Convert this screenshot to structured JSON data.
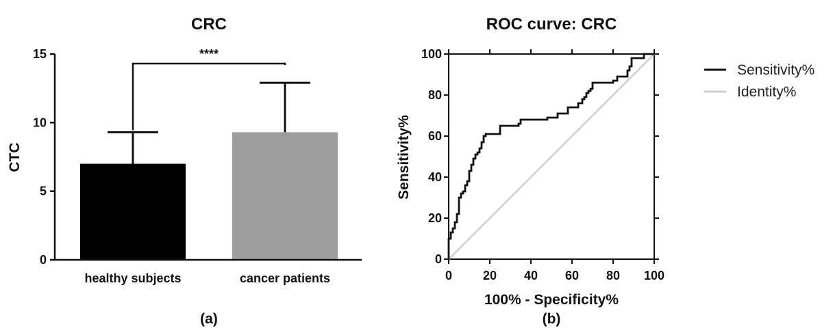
{
  "chart_data": [
    {
      "type": "bar",
      "panel_label": "(a)",
      "title": "CRC",
      "xlabel": "",
      "ylabel": "CTC",
      "ylim": [
        0,
        15
      ],
      "yticks": [
        "0",
        "5",
        "10",
        "15"
      ],
      "categories": [
        "healthy subjects",
        "cancer patients"
      ],
      "values": [
        7.0,
        9.3
      ],
      "error_upper": [
        9.3,
        12.9
      ],
      "colors": [
        "#000000",
        "#9e9e9e"
      ],
      "significance": {
        "label": "****",
        "between": [
          "healthy subjects",
          "cancer patients"
        ],
        "y": 14.3
      }
    },
    {
      "type": "line",
      "panel_label": "(b)",
      "title": "ROC curve: CRC",
      "xlabel": "100% - Specificity%",
      "ylabel": "Sensitivity%",
      "xlim": [
        0,
        100
      ],
      "ylim": [
        0,
        100
      ],
      "xticks": [
        "0",
        "20",
        "40",
        "60",
        "80",
        "100"
      ],
      "yticks": [
        "0",
        "20",
        "40",
        "60",
        "80",
        "100"
      ],
      "legend_position": "right",
      "series": [
        {
          "name": "Sensitivity%",
          "color": "#111111",
          "x": [
            0,
            0,
            1,
            1,
            2,
            2,
            3,
            3,
            4,
            4,
            5,
            5,
            6,
            6,
            7,
            7,
            8,
            8,
            9,
            9,
            10,
            10,
            11,
            11,
            12,
            12,
            13,
            13,
            14,
            14,
            15,
            15,
            16,
            16,
            17,
            17,
            18,
            18,
            25,
            25,
            34,
            34,
            35,
            35,
            48,
            48,
            53,
            53,
            58,
            58,
            63,
            63,
            65,
            65,
            66,
            66,
            67,
            67,
            68,
            68,
            69,
            69,
            70,
            70,
            80,
            80,
            82,
            82,
            87,
            87,
            88,
            88,
            89,
            89,
            95,
            95,
            100
          ],
          "y": [
            0,
            10,
            10,
            13,
            13,
            15,
            15,
            18,
            18,
            22,
            22,
            30,
            30,
            32,
            32,
            33,
            33,
            36,
            36,
            38,
            38,
            43,
            43,
            46,
            46,
            49,
            49,
            51,
            51,
            52,
            52,
            54,
            54,
            57,
            57,
            60,
            60,
            61,
            61,
            65,
            65,
            66,
            66,
            68,
            68,
            69,
            69,
            71,
            71,
            74,
            74,
            76,
            76,
            78,
            78,
            79,
            79,
            81,
            81,
            82,
            82,
            83,
            83,
            86,
            86,
            87,
            87,
            89,
            89,
            92,
            92,
            94,
            94,
            98,
            98,
            100,
            100
          ]
        },
        {
          "name": "Identity%",
          "color": "#cfcfcf",
          "x": [
            0,
            100
          ],
          "y": [
            0,
            100
          ]
        }
      ]
    }
  ]
}
